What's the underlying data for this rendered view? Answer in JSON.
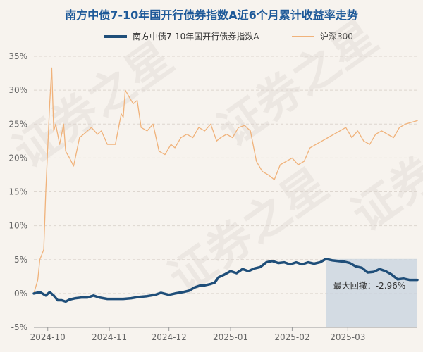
{
  "chart_data": {
    "type": "line",
    "title": "南方中债7-10年国开行债券指数A近6个月累计收益率走势",
    "series": [
      {
        "name": "南方中债7-10年国开行债券指数A",
        "color": "#1f4e79",
        "points": [
          [
            "2024-09-24",
            0.0
          ],
          [
            "2024-09-27",
            0.2
          ],
          [
            "2024-09-30",
            -0.3
          ],
          [
            "2024-10-02",
            0.2
          ],
          [
            "2024-10-04",
            -0.3
          ],
          [
            "2024-10-06",
            -1.0
          ],
          [
            "2024-10-08",
            -1.0
          ],
          [
            "2024-10-10",
            -1.2
          ],
          [
            "2024-10-12",
            -0.9
          ],
          [
            "2024-10-15",
            -0.7
          ],
          [
            "2024-10-18",
            -0.6
          ],
          [
            "2024-10-21",
            -0.6
          ],
          [
            "2024-10-24",
            -0.3
          ],
          [
            "2024-10-27",
            -0.6
          ],
          [
            "2024-10-31",
            -0.8
          ],
          [
            "2024-11-04",
            -0.8
          ],
          [
            "2024-11-08",
            -0.8
          ],
          [
            "2024-11-12",
            -0.7
          ],
          [
            "2024-11-16",
            -0.5
          ],
          [
            "2024-11-20",
            -0.4
          ],
          [
            "2024-11-24",
            -0.2
          ],
          [
            "2024-11-27",
            0.1
          ],
          [
            "2024-12-01",
            -0.2
          ],
          [
            "2024-12-04",
            0.0
          ],
          [
            "2024-12-08",
            0.2
          ],
          [
            "2024-12-11",
            0.4
          ],
          [
            "2024-12-14",
            0.9
          ],
          [
            "2024-12-17",
            1.2
          ],
          [
            "2024-12-19",
            1.2
          ],
          [
            "2024-12-22",
            1.4
          ],
          [
            "2024-12-24",
            1.6
          ],
          [
            "2024-12-26",
            2.4
          ],
          [
            "2024-12-29",
            2.8
          ],
          [
            "2025-01-01",
            3.3
          ],
          [
            "2025-01-04",
            3.0
          ],
          [
            "2025-01-07",
            3.6
          ],
          [
            "2025-01-10",
            3.3
          ],
          [
            "2025-01-13",
            3.7
          ],
          [
            "2025-01-16",
            3.9
          ],
          [
            "2025-01-19",
            4.6
          ],
          [
            "2025-01-22",
            4.8
          ],
          [
            "2025-01-25",
            4.5
          ],
          [
            "2025-01-28",
            4.6
          ],
          [
            "2025-01-31",
            4.3
          ],
          [
            "2025-02-03",
            4.6
          ],
          [
            "2025-02-06",
            4.3
          ],
          [
            "2025-02-09",
            4.6
          ],
          [
            "2025-02-12",
            4.4
          ],
          [
            "2025-02-15",
            4.6
          ],
          [
            "2025-02-18",
            5.1
          ],
          [
            "2025-02-21",
            4.9
          ],
          [
            "2025-02-24",
            4.8
          ],
          [
            "2025-02-27",
            4.7
          ],
          [
            "2025-03-02",
            4.5
          ],
          [
            "2025-03-05",
            4.0
          ],
          [
            "2025-03-08",
            3.8
          ],
          [
            "2025-03-11",
            3.1
          ],
          [
            "2025-03-14",
            3.2
          ],
          [
            "2025-03-17",
            3.6
          ],
          [
            "2025-03-20",
            3.3
          ],
          [
            "2025-03-23",
            2.8
          ],
          [
            "2025-03-26",
            2.1
          ],
          [
            "2025-03-29",
            2.2
          ],
          [
            "2025-04-01",
            2.0
          ],
          [
            "2025-04-05",
            2.0
          ]
        ]
      },
      {
        "name": "沪深300",
        "color": "#f0b27a",
        "points": [
          [
            "2024-09-24",
            0.0
          ],
          [
            "2024-09-26",
            2.0
          ],
          [
            "2024-09-27",
            5.0
          ],
          [
            "2024-09-29",
            6.5
          ],
          [
            "2024-09-30",
            15.0
          ],
          [
            "2024-10-02",
            28.0
          ],
          [
            "2024-10-03",
            33.3
          ],
          [
            "2024-10-04",
            24.0
          ],
          [
            "2024-10-05",
            25.0
          ],
          [
            "2024-10-07",
            22.0
          ],
          [
            "2024-10-09",
            25.0
          ],
          [
            "2024-10-10",
            21.0
          ],
          [
            "2024-10-12",
            20.0
          ],
          [
            "2024-10-14",
            18.8
          ],
          [
            "2024-10-17",
            23.0
          ],
          [
            "2024-10-19",
            23.5
          ],
          [
            "2024-10-21",
            24.0
          ],
          [
            "2024-10-23",
            24.5
          ],
          [
            "2024-10-26",
            23.5
          ],
          [
            "2024-10-28",
            24.0
          ],
          [
            "2024-10-31",
            22.0
          ],
          [
            "2024-11-04",
            22.0
          ],
          [
            "2024-11-07",
            26.5
          ],
          [
            "2024-11-08",
            26.0
          ],
          [
            "2024-11-09",
            30.0
          ],
          [
            "2024-11-11",
            29.0
          ],
          [
            "2024-11-13",
            28.0
          ],
          [
            "2024-11-15",
            28.5
          ],
          [
            "2024-11-17",
            24.5
          ],
          [
            "2024-11-20",
            24.0
          ],
          [
            "2024-11-23",
            25.0
          ],
          [
            "2024-11-26",
            21.0
          ],
          [
            "2024-11-29",
            20.5
          ],
          [
            "2024-12-02",
            22.0
          ],
          [
            "2024-12-04",
            21.5
          ],
          [
            "2024-12-07",
            23.0
          ],
          [
            "2024-12-10",
            23.5
          ],
          [
            "2024-12-13",
            23.0
          ],
          [
            "2024-12-16",
            24.5
          ],
          [
            "2024-12-19",
            24.0
          ],
          [
            "2024-12-22",
            25.0
          ],
          [
            "2024-12-25",
            22.5
          ],
          [
            "2024-12-27",
            23.0
          ],
          [
            "2024-12-30",
            23.5
          ],
          [
            "2025-01-02",
            23.0
          ],
          [
            "2025-01-05",
            24.5
          ],
          [
            "2025-01-08",
            24.8
          ],
          [
            "2025-01-11",
            24.0
          ],
          [
            "2025-01-14",
            19.5
          ],
          [
            "2025-01-17",
            18.0
          ],
          [
            "2025-01-20",
            17.5
          ],
          [
            "2025-01-23",
            16.8
          ],
          [
            "2025-01-26",
            19.0
          ],
          [
            "2025-01-29",
            19.5
          ],
          [
            "2025-02-01",
            20.0
          ],
          [
            "2025-02-04",
            19.0
          ],
          [
            "2025-02-07",
            19.5
          ],
          [
            "2025-02-10",
            21.5
          ],
          [
            "2025-02-13",
            22.0
          ],
          [
            "2025-02-16",
            22.5
          ],
          [
            "2025-02-19",
            23.0
          ],
          [
            "2025-02-22",
            23.5
          ],
          [
            "2025-02-25",
            24.0
          ],
          [
            "2025-02-28",
            24.5
          ],
          [
            "2025-03-03",
            23.0
          ],
          [
            "2025-03-06",
            24.0
          ],
          [
            "2025-03-09",
            22.5
          ],
          [
            "2025-03-12",
            22.0
          ],
          [
            "2025-03-15",
            23.5
          ],
          [
            "2025-03-18",
            24.0
          ],
          [
            "2025-03-21",
            23.5
          ],
          [
            "2025-03-24",
            23.0
          ],
          [
            "2025-03-27",
            24.5
          ],
          [
            "2025-03-30",
            25.0
          ],
          [
            "2025-04-05",
            25.5
          ]
        ]
      }
    ],
    "y_axis": {
      "min": -5,
      "max": 35,
      "ticks": [
        -5,
        0,
        5,
        10,
        15,
        20,
        25,
        30,
        35
      ],
      "tick_suffix": "%",
      "grid": true
    },
    "x_axis": {
      "min": "2024-09-24",
      "max": "2025-04-05",
      "ticks": [
        {
          "date": "2024-10-01",
          "label": "2024-10"
        },
        {
          "date": "2024-11-01",
          "label": "2024-11"
        },
        {
          "date": "2024-12-01",
          "label": "2024-12"
        },
        {
          "date": "2025-01-01",
          "label": "2025-01"
        },
        {
          "date": "2025-02-01",
          "label": "2025-02"
        },
        {
          "date": "2025-03-01",
          "label": "2025-03"
        }
      ]
    },
    "legend_position": "top",
    "annotation": {
      "label": "最大回撤：-2.96%",
      "shade_start": "2025-02-18",
      "shade_end": "2025-04-05",
      "shade_bottom": -5,
      "shade_top": 5.1
    }
  },
  "watermark": "证券之星"
}
